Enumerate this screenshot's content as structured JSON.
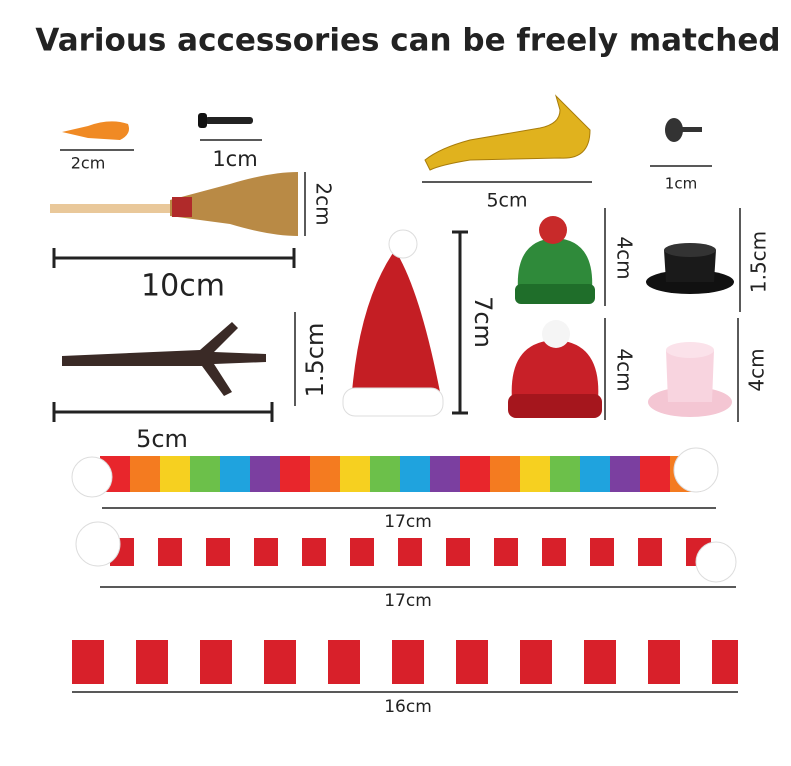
{
  "title": "Various accessories can be freely matched",
  "items": [
    {
      "label": "2cm"
    },
    {
      "label": "1cm"
    },
    {
      "label": "2cm"
    },
    {
      "label": "10cm"
    },
    {
      "label": "5cm"
    },
    {
      "label": "1cm"
    },
    {
      "label": "7cm"
    },
    {
      "label": "4cm"
    },
    {
      "label": "1.5cm"
    },
    {
      "label": "1.5cm"
    },
    {
      "label": "4cm"
    },
    {
      "label": "4cm"
    },
    {
      "label": "5cm"
    },
    {
      "label": "17cm"
    },
    {
      "label": "17cm"
    },
    {
      "label": "16cm"
    }
  ]
}
